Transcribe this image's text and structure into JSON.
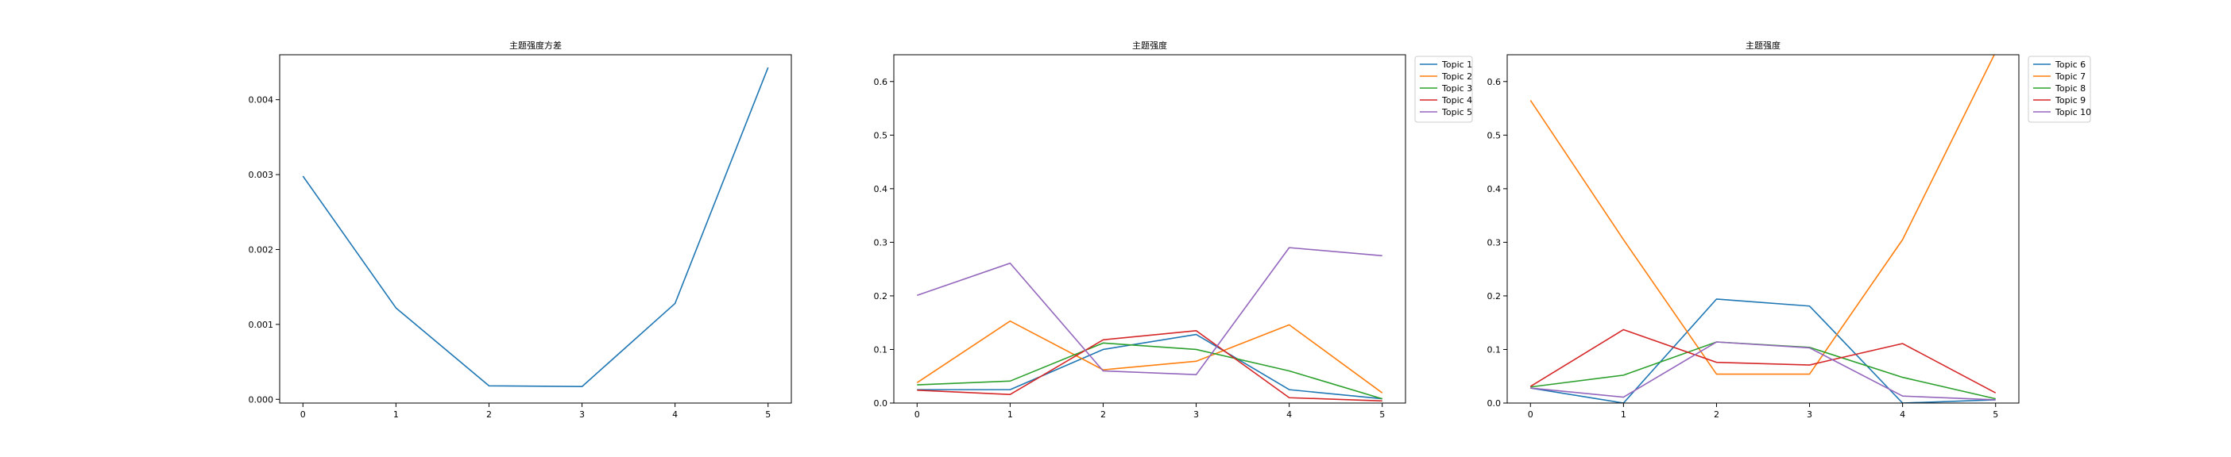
{
  "chart_data": [
    {
      "type": "line",
      "title": "主题强度方差",
      "xlabel": "",
      "ylabel": "",
      "x": [
        0,
        1,
        2,
        3,
        4,
        5
      ],
      "xticks": [
        "0",
        "1",
        "2",
        "3",
        "4",
        "5"
      ],
      "yticks": [
        0.0,
        0.001,
        0.002,
        0.003,
        0.004
      ],
      "ytick_labels": [
        "0.000",
        "0.001",
        "0.002",
        "0.003",
        "0.004"
      ],
      "xlim": [
        -0.25,
        5.25
      ],
      "ylim": [
        -5e-05,
        0.0046
      ],
      "legend": false,
      "grid": false,
      "series": [
        {
          "color": "#1f77b4",
          "values": [
            0.00298,
            0.00122,
            0.00018,
            0.00017,
            0.00128,
            0.00443
          ]
        }
      ]
    },
    {
      "type": "line",
      "title": "主题强度",
      "xlabel": "",
      "ylabel": "",
      "x": [
        0,
        1,
        2,
        3,
        4,
        5
      ],
      "xticks": [
        "0",
        "1",
        "2",
        "3",
        "4",
        "5"
      ],
      "yticks": [
        0.0,
        0.1,
        0.2,
        0.3,
        0.4,
        0.5,
        0.6
      ],
      "ytick_labels": [
        "0.0",
        "0.1",
        "0.2",
        "0.3",
        "0.4",
        "0.5",
        "0.6"
      ],
      "xlim": [
        -0.25,
        5.25
      ],
      "ylim": [
        0,
        0.65
      ],
      "legend": true,
      "legend_position": "outside-right-top",
      "grid": false,
      "series": [
        {
          "name": "Topic 1",
          "color": "#1f77b4",
          "values": [
            0.025,
            0.025,
            0.1,
            0.128,
            0.025,
            0.008
          ]
        },
        {
          "name": "Topic 2",
          "color": "#ff7f0e",
          "values": [
            0.038,
            0.153,
            0.062,
            0.078,
            0.146,
            0.019
          ]
        },
        {
          "name": "Topic 3",
          "color": "#2ca02c",
          "values": [
            0.034,
            0.041,
            0.112,
            0.1,
            0.06,
            0.008
          ]
        },
        {
          "name": "Topic 4",
          "color": "#d62728",
          "values": [
            0.024,
            0.016,
            0.118,
            0.135,
            0.01,
            0.004
          ]
        },
        {
          "name": "Topic 5",
          "color": "#9467bd",
          "values": [
            0.201,
            0.261,
            0.06,
            0.053,
            0.29,
            0.275
          ]
        }
      ]
    },
    {
      "type": "line",
      "title": "主题强度",
      "xlabel": "",
      "ylabel": "",
      "x": [
        0,
        1,
        2,
        3,
        4,
        5
      ],
      "xticks": [
        "0",
        "1",
        "2",
        "3",
        "4",
        "5"
      ],
      "yticks": [
        0.0,
        0.1,
        0.2,
        0.3,
        0.4,
        0.5,
        0.6
      ],
      "ytick_labels": [
        "0.0",
        "0.1",
        "0.2",
        "0.3",
        "0.4",
        "0.5",
        "0.6"
      ],
      "xlim": [
        -0.25,
        5.25
      ],
      "ylim": [
        0,
        0.65
      ],
      "legend": true,
      "legend_position": "outside-right-top",
      "grid": false,
      "series": [
        {
          "name": "Topic 6",
          "color": "#1f77b4",
          "values": [
            0.028,
            0.0,
            0.194,
            0.181,
            0.0,
            0.006
          ]
        },
        {
          "name": "Topic 7",
          "color": "#ff7f0e",
          "values": [
            0.565,
            0.305,
            0.054,
            0.054,
            0.305,
            0.655
          ]
        },
        {
          "name": "Topic 8",
          "color": "#2ca02c",
          "values": [
            0.03,
            0.052,
            0.114,
            0.104,
            0.048,
            0.008
          ]
        },
        {
          "name": "Topic 9",
          "color": "#d62728",
          "values": [
            0.031,
            0.137,
            0.076,
            0.071,
            0.111,
            0.019
          ]
        },
        {
          "name": "Topic 10",
          "color": "#9467bd",
          "values": [
            0.028,
            0.011,
            0.114,
            0.103,
            0.013,
            0.006
          ]
        }
      ]
    }
  ]
}
